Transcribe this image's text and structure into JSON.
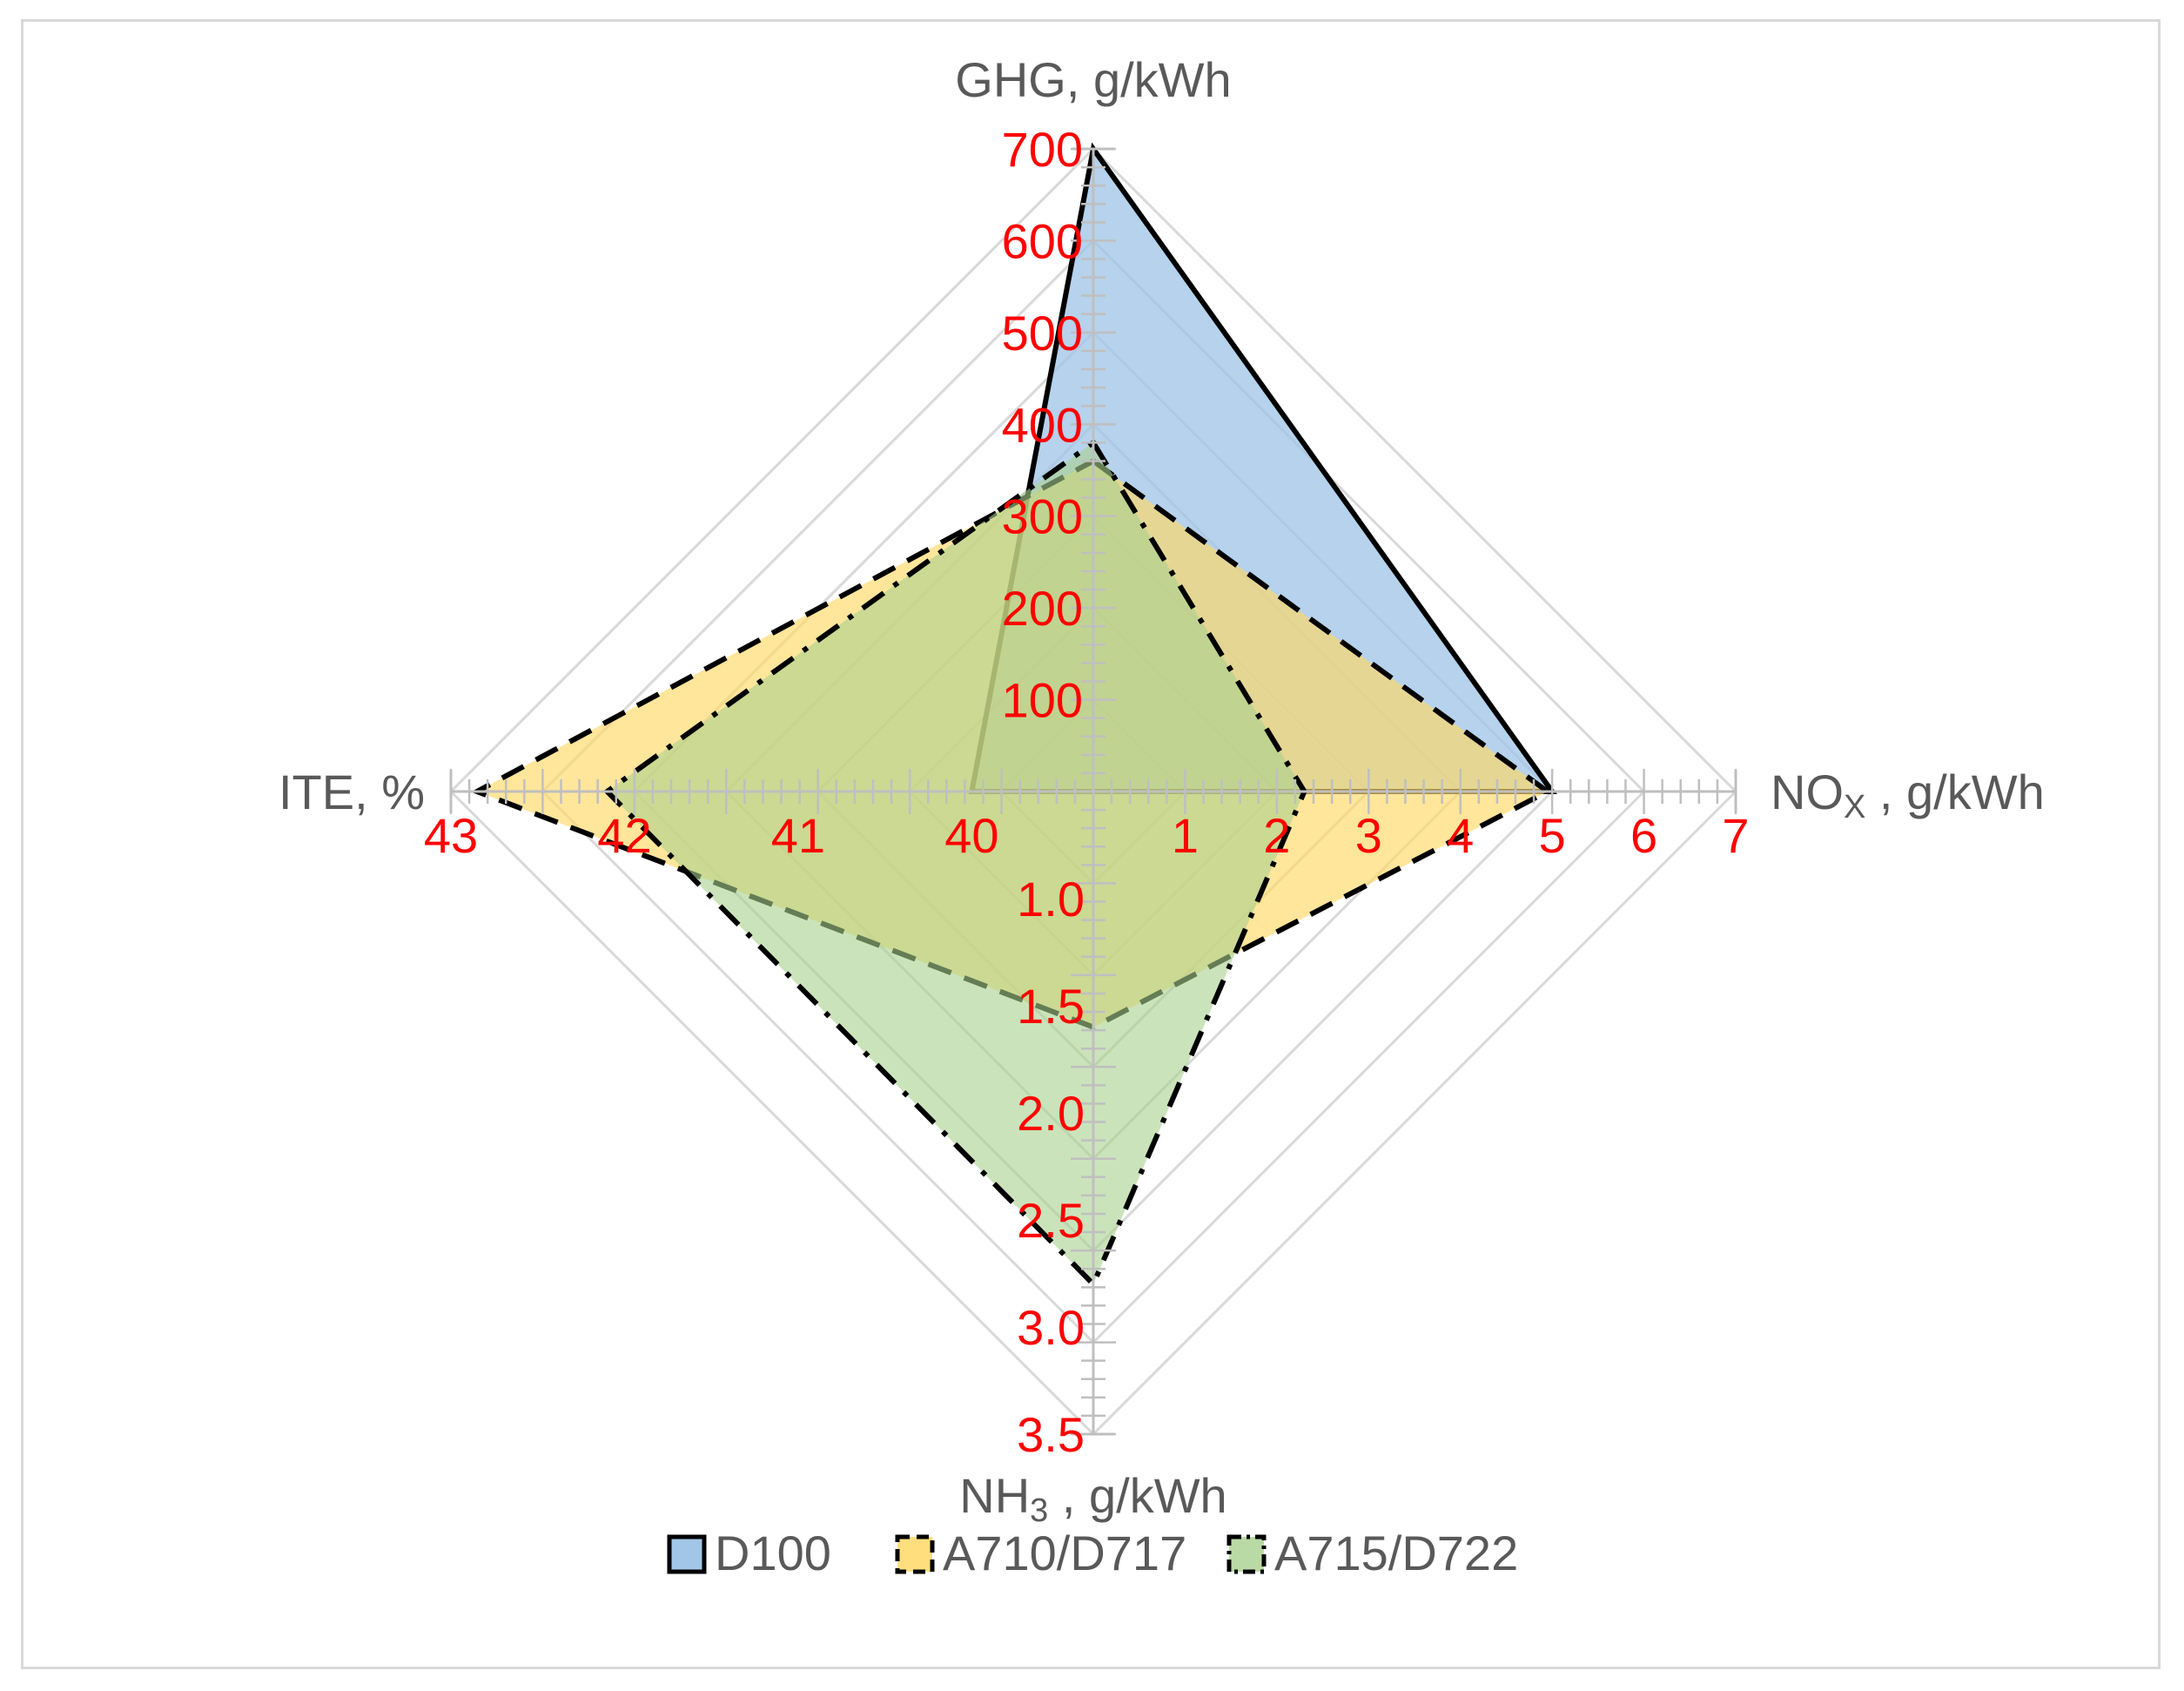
{
  "chart_data": {
    "type": "radar",
    "grid": true,
    "legend_position": "bottom",
    "axes": [
      {
        "id": "ghg",
        "label_main": "GHG, g/kWh",
        "label_sub": "",
        "label_tail": "",
        "min": 0,
        "max": 700,
        "ticks": [
          "100",
          "200",
          "300",
          "400",
          "500",
          "600",
          "700"
        ],
        "tick_values": [
          100,
          200,
          300,
          400,
          500,
          600,
          700
        ]
      },
      {
        "id": "nox",
        "label_main": "NO",
        "label_sub": "X",
        "label_tail": " , g/kWh",
        "min": 0,
        "max": 7,
        "ticks": [
          "1",
          "2",
          "3",
          "4",
          "5",
          "6",
          "7"
        ],
        "tick_values": [
          1,
          2,
          3,
          4,
          5,
          6,
          7
        ]
      },
      {
        "id": "nh3",
        "label_main": "NH",
        "label_sub": "3",
        "label_tail": " , g/kWh",
        "min": 0.5,
        "max": 3.5,
        "ticks": [
          "1.0",
          "1.5",
          "2.0",
          "2.5",
          "3.0",
          "3.5"
        ],
        "tick_values": [
          1.0,
          1.5,
          2.0,
          2.5,
          3.0,
          3.5
        ]
      },
      {
        "id": "ite",
        "label_main": "ITE, %",
        "label_sub": "",
        "label_tail": "",
        "min": 39.3,
        "max": 43,
        "ticks": [
          "40",
          "41",
          "42",
          "43"
        ],
        "tick_values": [
          40,
          41,
          42,
          43
        ]
      }
    ],
    "series": [
      {
        "name": "D100",
        "fill": "#9dc3e6",
        "fill_opacity": 0.75,
        "stroke": "#000000",
        "dash": "solid",
        "values": {
          "ghg": 700,
          "nox": 5.0,
          "nh3": 0.5,
          "ite": 40.0
        }
      },
      {
        "name": "A710/D717",
        "fill": "#ffd966",
        "fill_opacity": 0.65,
        "stroke": "#000000",
        "dash": "dash",
        "values": {
          "ghg": 360,
          "nox": 4.95,
          "nh3": 1.6,
          "ite": 42.85
        }
      },
      {
        "name": "A715/D722",
        "fill": "#a9d18e",
        "fill_opacity": 0.6,
        "stroke": "#000000",
        "dash": "dashdot",
        "values": {
          "ghg": 380,
          "nox": 2.3,
          "nh3": 2.8,
          "ite": 42.1
        }
      }
    ]
  },
  "colors": {
    "grid": "#d9d9d9",
    "axis": "#bfbfbf",
    "tick_label": "#ff0000",
    "axis_title": "#595959"
  }
}
